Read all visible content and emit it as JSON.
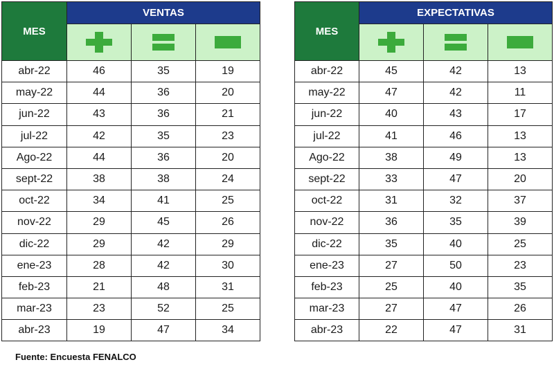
{
  "chart_data": [
    {
      "type": "table",
      "group_label": "VENTAS",
      "mes_label": "MES",
      "columns": [
        "plus-icon",
        "equal-icon",
        "minus-icon"
      ],
      "rows": [
        {
          "mes": "abr-22",
          "values": [
            "46",
            "35",
            "19"
          ]
        },
        {
          "mes": "may-22",
          "values": [
            "44",
            "36",
            "20"
          ]
        },
        {
          "mes": "jun-22",
          "values": [
            "43",
            "36",
            "21"
          ]
        },
        {
          "mes": "jul-22",
          "values": [
            "42",
            "35",
            "23"
          ]
        },
        {
          "mes": "Ago-22",
          "values": [
            "44",
            "36",
            "20"
          ]
        },
        {
          "mes": "sept-22",
          "values": [
            "38",
            "38",
            "24"
          ]
        },
        {
          "mes": "oct-22",
          "values": [
            "34",
            "41",
            "25"
          ]
        },
        {
          "mes": "nov-22",
          "values": [
            "29",
            "45",
            "26"
          ]
        },
        {
          "mes": "dic-22",
          "values": [
            "29",
            "42",
            "29"
          ]
        },
        {
          "mes": "ene-23",
          "values": [
            "28",
            "42",
            "30"
          ]
        },
        {
          "mes": "feb-23",
          "values": [
            "21",
            "48",
            "31"
          ]
        },
        {
          "mes": "mar-23",
          "values": [
            "23",
            "52",
            "25"
          ]
        },
        {
          "mes": "abr-23",
          "values": [
            "19",
            "47",
            "34"
          ]
        }
      ]
    },
    {
      "type": "table",
      "group_label": "EXPECTATIVAS",
      "mes_label": "MES",
      "columns": [
        "plus-icon",
        "equal-icon",
        "minus-icon"
      ],
      "rows": [
        {
          "mes": "abr-22",
          "values": [
            "45",
            "42",
            "13"
          ]
        },
        {
          "mes": "may-22",
          "values": [
            "47",
            "42",
            "11"
          ]
        },
        {
          "mes": "jun-22",
          "values": [
            "40",
            "43",
            "17"
          ]
        },
        {
          "mes": "jul-22",
          "values": [
            "41",
            "46",
            "13"
          ]
        },
        {
          "mes": "Ago-22",
          "values": [
            "38",
            "49",
            "13"
          ]
        },
        {
          "mes": "sept-22",
          "values": [
            "33",
            "47",
            "20"
          ]
        },
        {
          "mes": "oct-22",
          "values": [
            "31",
            "32",
            "37"
          ]
        },
        {
          "mes": "nov-22",
          "values": [
            "36",
            "35",
            "39"
          ]
        },
        {
          "mes": "dic-22",
          "values": [
            "35",
            "40",
            "25"
          ]
        },
        {
          "mes": "ene-23",
          "values": [
            "27",
            "50",
            "23"
          ]
        },
        {
          "mes": "feb-23",
          "values": [
            "25",
            "40",
            "35"
          ]
        },
        {
          "mes": "mar-23",
          "values": [
            "27",
            "47",
            "26"
          ]
        },
        {
          "mes": "abr-23",
          "values": [
            "22",
            "47",
            "31"
          ]
        }
      ]
    }
  ],
  "source": "Fuente: Encuesta FENALCO",
  "colors": {
    "header_green": "#1e7a3c",
    "header_blue": "#1d3b8c",
    "symbol_row_bg": "#ccf2c8",
    "symbol_green": "#3cab3c"
  }
}
